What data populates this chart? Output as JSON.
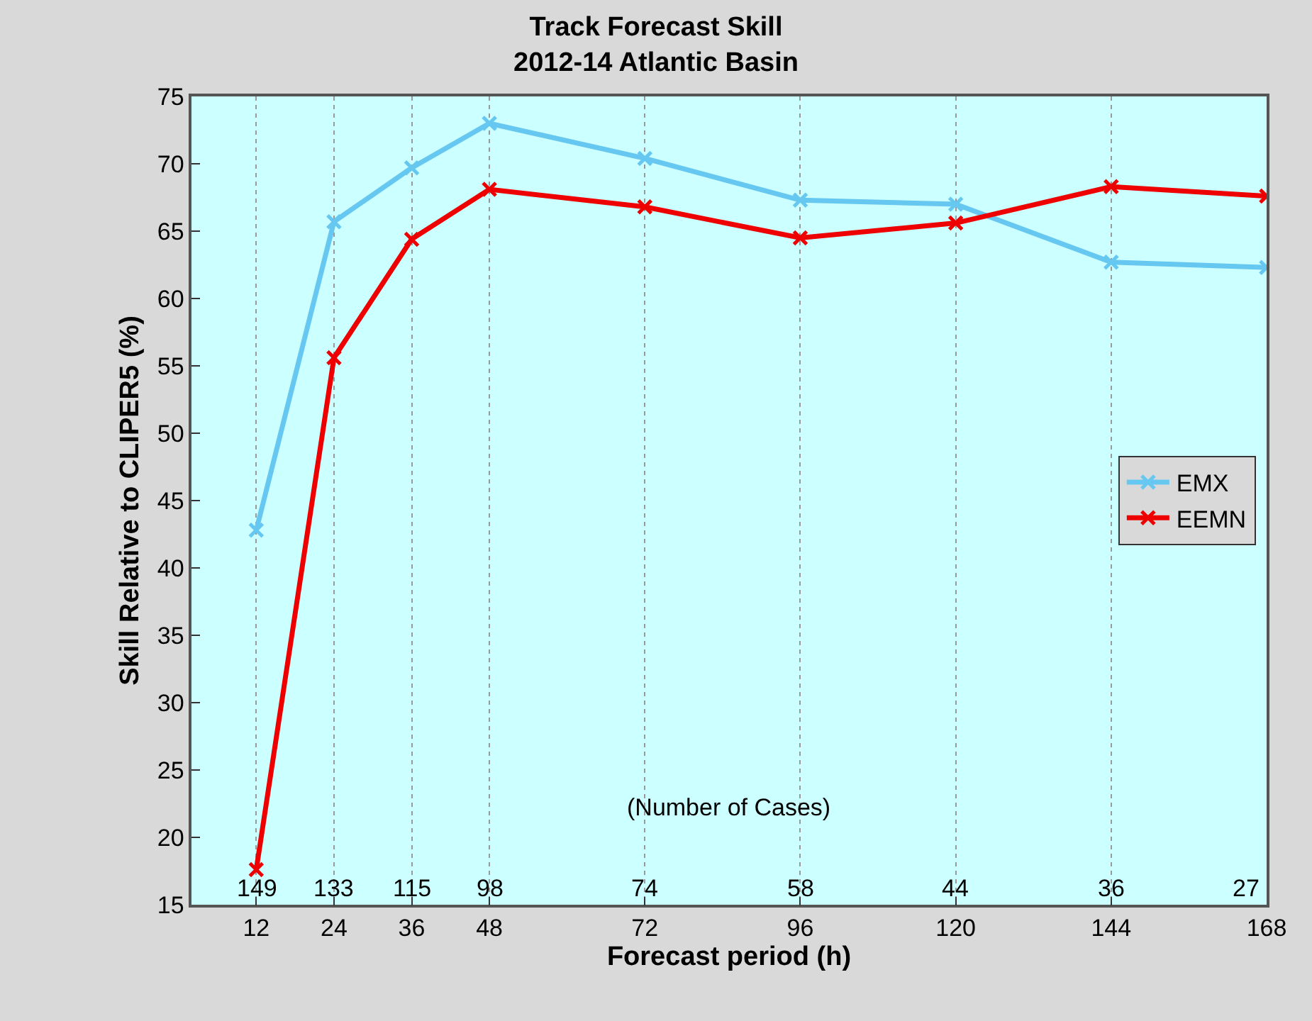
{
  "chart_data": {
    "type": "line",
    "title": "Track Forecast Skill",
    "subtitle": "2012-14 Atlantic Basin",
    "xlabel": "Forecast period (h)",
    "ylabel": "Skill Relative to CLIPER5 (%)",
    "x": [
      12,
      24,
      36,
      48,
      72,
      96,
      120,
      144,
      168
    ],
    "series": [
      {
        "name": "EMX",
        "color": "#66c8f0",
        "values": [
          42.8,
          65.7,
          69.7,
          73.0,
          70.4,
          67.3,
          67.0,
          62.7,
          62.3
        ]
      },
      {
        "name": "EEMN",
        "color": "#ee0000",
        "values": [
          17.6,
          55.6,
          64.4,
          68.1,
          66.8,
          64.5,
          65.6,
          68.3,
          67.6
        ]
      }
    ],
    "xlim": [
      2,
      168
    ],
    "xticks": [
      12,
      24,
      36,
      48,
      72,
      96,
      120,
      144,
      168
    ],
    "ylim": [
      15,
      75
    ],
    "yticks": [
      15,
      20,
      25,
      30,
      35,
      40,
      45,
      50,
      55,
      60,
      65,
      70,
      75
    ],
    "grid": "x",
    "legend": "right",
    "marker": "cross",
    "line_style": "solid",
    "annotations": [
      "149",
      "133",
      "115",
      "98",
      "74",
      "58",
      "44",
      "36",
      "27",
      "(Number of Cases)"
    ]
  }
}
